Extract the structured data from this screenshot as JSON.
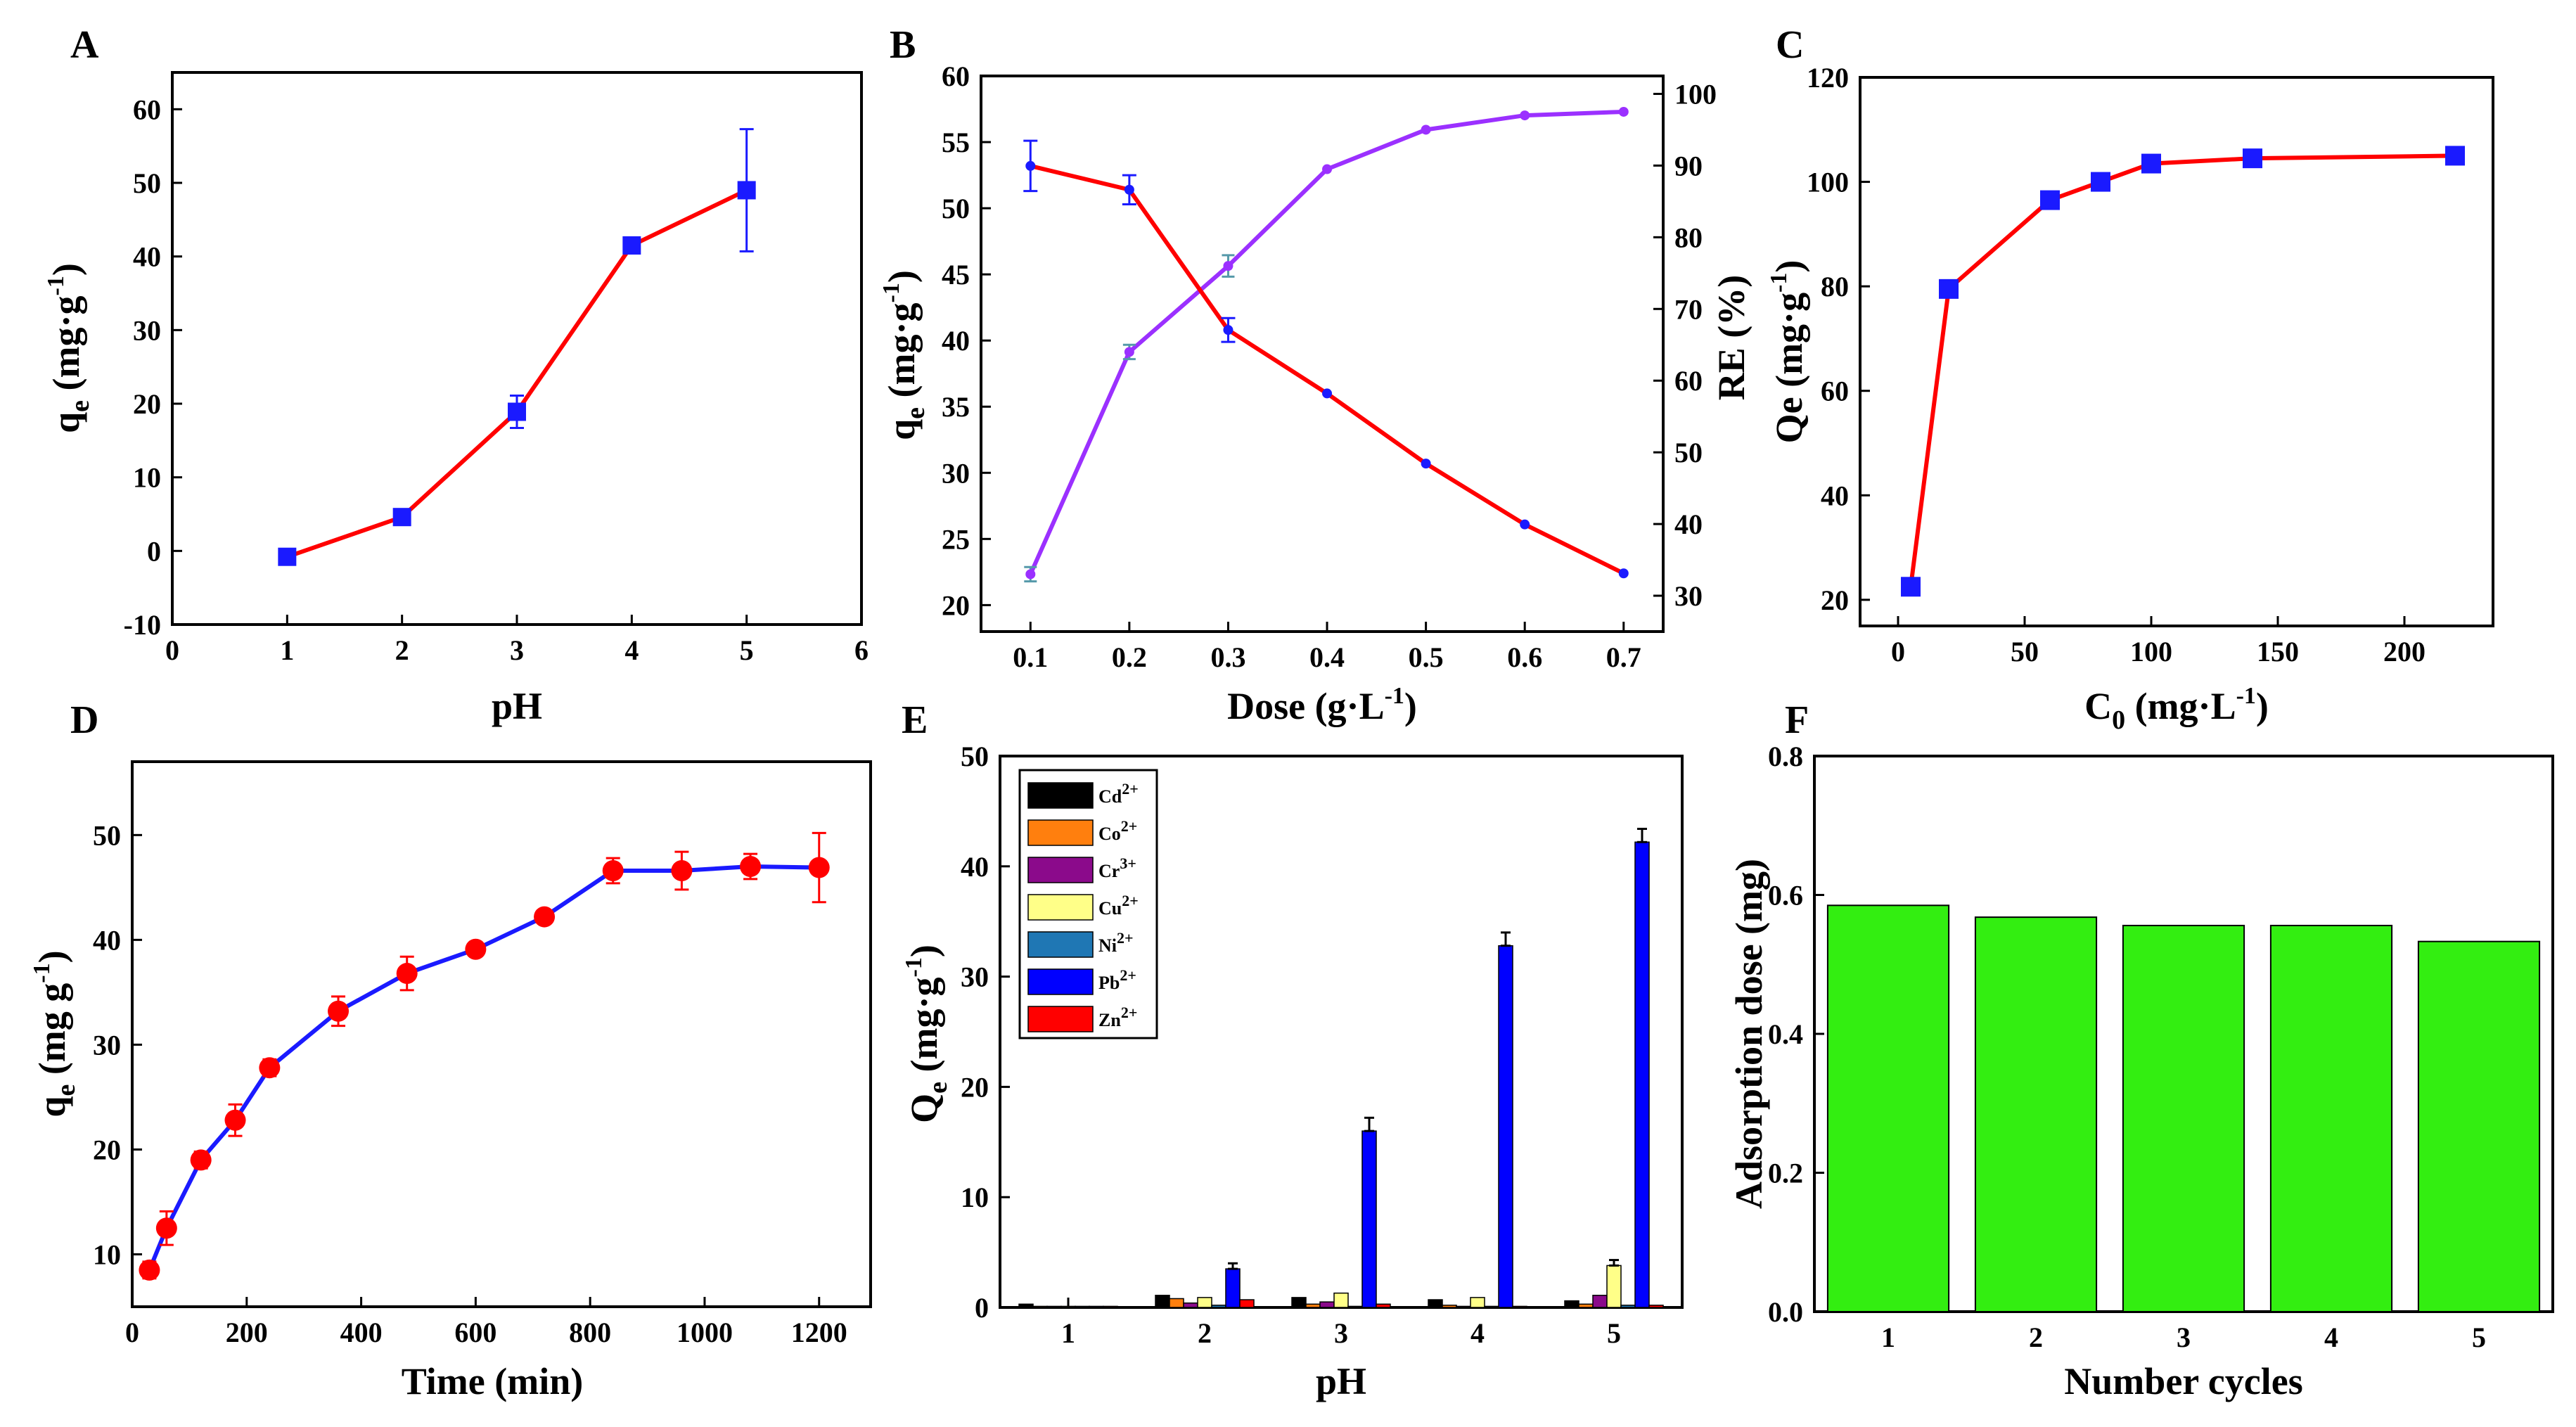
{
  "colors": {
    "red_line": "#ff0000",
    "blue_marker": "#1a1aff",
    "purple_line": "#9b30ff",
    "blue_line": "#1a1aff",
    "red_marker": "#ff0000",
    "green_bar": "#33ee11",
    "metals": {
      "Cd2+": "#000000",
      "Co2+": "#ff7f0e",
      "Cr3+": "#8b0a8b",
      "Cu2+": "#ffff88",
      "Ni2+": "#1f77b4",
      "Pb2+": "#0000ff",
      "Zn2+": "#ff0000"
    }
  },
  "chart_data": [
    {
      "panel": "A",
      "type": "line",
      "xlabel": "pH",
      "ylabel_main": "q",
      "ylabel_sub": "e",
      "ylabel_rest": " (mg·g",
      "ylabel_sup": "-1",
      "ylabel_end": ")",
      "xlim": [
        0,
        6
      ],
      "ylim": [
        -10,
        65
      ],
      "xticks": [
        0,
        1,
        2,
        3,
        4,
        5,
        6
      ],
      "yticks": [
        -10,
        0,
        10,
        20,
        30,
        40,
        50,
        60
      ],
      "x": [
        1,
        2,
        3,
        4,
        5
      ],
      "y": [
        -0.8,
        4.6,
        18.9,
        41.5,
        49.0
      ],
      "err": [
        1.0,
        1.0,
        2.2,
        0.8,
        8.3
      ]
    },
    {
      "panel": "B",
      "type": "line",
      "xlabel_main": "Dose (g·L",
      "xlabel_sup": "-1",
      "xlabel_end": ")",
      "ylabel_main": "q",
      "ylabel_sub": "e",
      "ylabel_rest": " (mg·g",
      "ylabel_sup": "-1",
      "ylabel_end": ")",
      "y2label": "RE (%)",
      "xlim": [
        0.05,
        0.74
      ],
      "ylim": [
        18,
        60
      ],
      "y2lim": [
        25,
        102.5
      ],
      "xticks": [
        0.1,
        0.2,
        0.3,
        0.4,
        0.5,
        0.6,
        0.7
      ],
      "yticks": [
        20,
        25,
        30,
        35,
        40,
        45,
        50,
        55,
        60
      ],
      "y2ticks": [
        30,
        40,
        50,
        60,
        70,
        80,
        90,
        100
      ],
      "series": [
        {
          "name": "qe",
          "axis": "left",
          "x": [
            0.1,
            0.2,
            0.3,
            0.4,
            0.5,
            0.6,
            0.7
          ],
          "y": [
            53.2,
            51.4,
            40.8,
            36.0,
            30.7,
            26.1,
            22.4
          ],
          "err": [
            1.9,
            1.1,
            0.9,
            0,
            0,
            0,
            0
          ]
        },
        {
          "name": "RE",
          "axis": "right",
          "x": [
            0.1,
            0.2,
            0.3,
            0.4,
            0.5,
            0.6,
            0.7
          ],
          "y": [
            33.0,
            64.0,
            76.0,
            89.5,
            95.0,
            97.0,
            97.5
          ],
          "err": [
            1.0,
            1.0,
            1.5,
            0,
            0,
            0,
            0
          ]
        }
      ]
    },
    {
      "panel": "C",
      "type": "line",
      "xlabel_main": "C",
      "xlabel_sub": "0",
      "xlabel_rest": " (mg·L",
      "xlabel_sup": "-1",
      "xlabel_end": ")",
      "ylabel": "Qe (mg·g",
      "ylabel_sup": "-1",
      "ylabel_end": ")",
      "xlim": [
        -15,
        235
      ],
      "ylim": [
        15,
        120
      ],
      "xticks": [
        0,
        50,
        100,
        150,
        200
      ],
      "yticks": [
        20,
        40,
        60,
        80,
        100,
        120
      ],
      "x": [
        5,
        20,
        60,
        80,
        100,
        140,
        220
      ],
      "y": [
        22.5,
        79.5,
        96.5,
        100,
        103.5,
        104.5,
        105
      ]
    },
    {
      "panel": "D",
      "type": "line",
      "xlabel": "Time (min)",
      "ylabel_main": "q",
      "ylabel_sub": "e",
      "ylabel_rest": " (mg g",
      "ylabel_sup": "-1",
      "ylabel_end": ")",
      "xlim": [
        0,
        1290
      ],
      "ylim": [
        5,
        57
      ],
      "xticks": [
        0,
        200,
        400,
        600,
        800,
        1000,
        1200
      ],
      "yticks": [
        10,
        20,
        30,
        40,
        50
      ],
      "x": [
        30,
        60,
        120,
        180,
        240,
        360,
        480,
        600,
        720,
        840,
        960,
        1080,
        1200
      ],
      "y": [
        8.5,
        12.5,
        19,
        22.8,
        27.8,
        33.2,
        36.8,
        39.1,
        42.2,
        46.6,
        46.6,
        47.0,
        46.9
      ],
      "err": [
        0.8,
        1.6,
        0.8,
        1.5,
        0.8,
        1.4,
        1.6,
        0.6,
        0.6,
        1.2,
        1.8,
        1.2,
        3.3
      ]
    },
    {
      "panel": "E",
      "type": "bar",
      "xlabel": "pH",
      "ylabel_main": "Q",
      "ylabel_sub": "e",
      "ylabel_rest": " (mg·g",
      "ylabel_sup": "-1",
      "ylabel_end": ")",
      "xlim": [
        0.5,
        5.5
      ],
      "ylim": [
        0,
        50
      ],
      "categories": [
        "1",
        "2",
        "3",
        "4",
        "5"
      ],
      "yticks": [
        0,
        10,
        20,
        30,
        40,
        50
      ],
      "series": [
        {
          "name": "Cd",
          "sup": "2+",
          "key": "Cd2+",
          "values": [
            0.3,
            1.1,
            0.9,
            0.7,
            0.6
          ]
        },
        {
          "name": "Co",
          "sup": "2+",
          "key": "Co2+",
          "values": [
            0.1,
            0.8,
            0.3,
            0.2,
            0.3
          ]
        },
        {
          "name": "Cr",
          "sup": "3+",
          "key": "Cr3+",
          "values": [
            0.1,
            0.4,
            0.5,
            0.1,
            1.1
          ]
        },
        {
          "name": "Cu",
          "sup": "2+",
          "key": "Cu2+",
          "values": [
            0.1,
            0.9,
            1.3,
            0.9,
            3.8
          ]
        },
        {
          "name": "Ni",
          "sup": "2+",
          "key": "Ni2+",
          "values": [
            0.1,
            0.2,
            0.1,
            0.1,
            0.2
          ]
        },
        {
          "name": "Pb",
          "sup": "2+",
          "key": "Pb2+",
          "values": [
            0.1,
            3.5,
            16.0,
            32.8,
            42.2
          ]
        },
        {
          "name": "Zn",
          "sup": "2+",
          "key": "Zn2+",
          "values": [
            0.1,
            0.7,
            0.3,
            0.1,
            0.2
          ]
        }
      ]
    },
    {
      "panel": "F",
      "type": "bar",
      "xlabel": "Number cycles",
      "ylabel": "Adsorption dose (mg)",
      "ylim": [
        0,
        0.8
      ],
      "categories": [
        "1",
        "2",
        "3",
        "4",
        "5"
      ],
      "yticks": [
        "0.0",
        "0.2",
        "0.4",
        "0.6",
        "0.8"
      ],
      "values": [
        0.585,
        0.568,
        0.556,
        0.556,
        0.533
      ]
    }
  ]
}
